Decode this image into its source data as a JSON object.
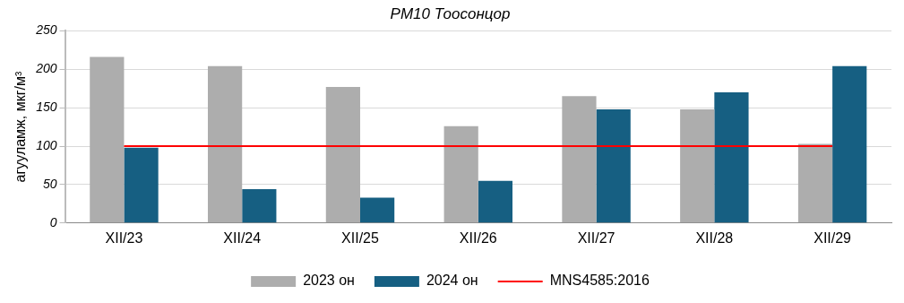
{
  "chart_data": {
    "type": "bar",
    "title": "PM10 Тоосонцор",
    "ylabel": "агууламж, мкг/м³",
    "categories": [
      "XII/23",
      "XII/24",
      "XII/25",
      "XII/26",
      "XII/27",
      "XII/28",
      "XII/29"
    ],
    "series": [
      {
        "name": "2023 он",
        "color": "#adadad",
        "values": [
          216,
          204,
          177,
          126,
          165,
          148,
          103
        ]
      },
      {
        "name": "2024 он",
        "color": "#165f82",
        "values": [
          98,
          44,
          33,
          55,
          148,
          170,
          204
        ]
      },
      {
        "name": "MNS4585:2016",
        "type": "line",
        "color": "#ff0000",
        "marker": "none",
        "values": [
          100,
          100,
          100,
          100,
          100,
          100,
          100
        ]
      }
    ],
    "ylim": [
      0,
      250
    ],
    "yticks": [
      0,
      50,
      100,
      150,
      200,
      250
    ],
    "grid": "y",
    "legend": "bottom"
  }
}
